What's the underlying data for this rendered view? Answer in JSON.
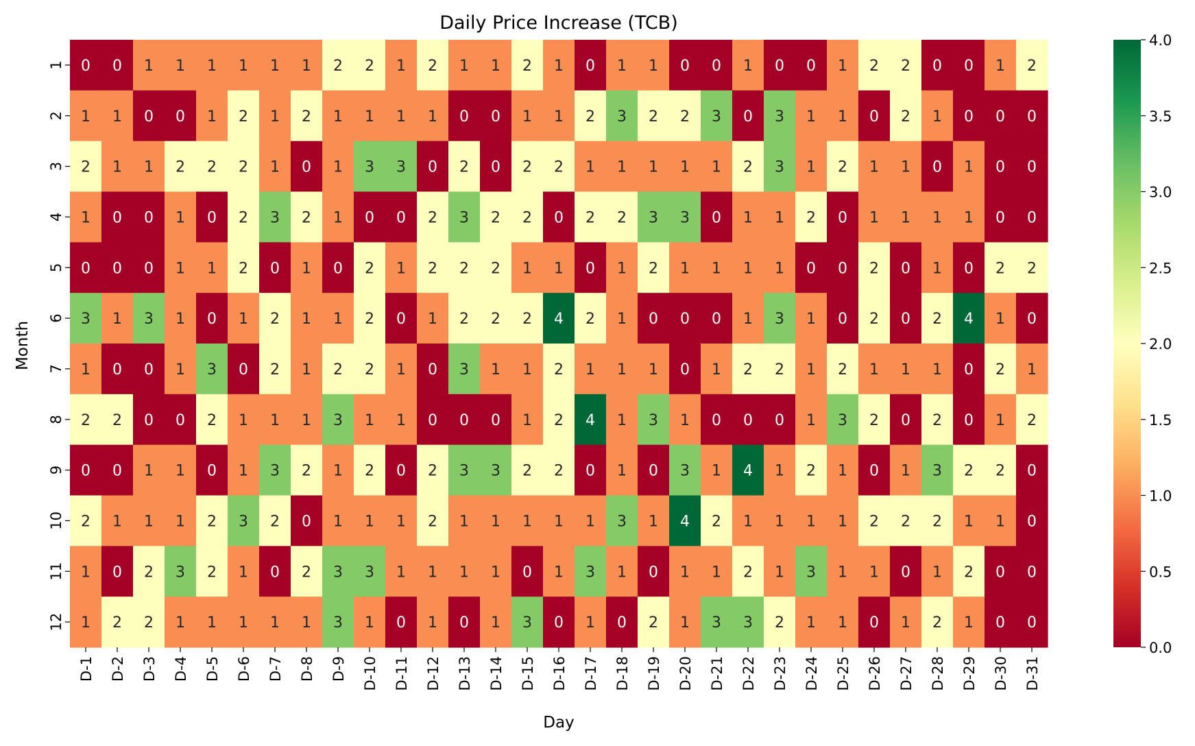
{
  "chart_data": {
    "type": "heatmap",
    "title": "Daily Price Increase (TCB)",
    "xlabel": "Day",
    "ylabel": "Month",
    "x_categories": [
      "D-1",
      "D-2",
      "D-3",
      "D-4",
      "D-5",
      "D-6",
      "D-7",
      "D-8",
      "D-9",
      "D-10",
      "D-11",
      "D-12",
      "D-13",
      "D-14",
      "D-15",
      "D-16",
      "D-17",
      "D-18",
      "D-19",
      "D-20",
      "D-21",
      "D-22",
      "D-23",
      "D-24",
      "D-25",
      "D-26",
      "D-27",
      "D-28",
      "D-29",
      "D-30",
      "D-31"
    ],
    "y_categories": [
      "1",
      "2",
      "3",
      "4",
      "5",
      "6",
      "7",
      "8",
      "9",
      "10",
      "11",
      "12"
    ],
    "values": [
      [
        0,
        0,
        1,
        1,
        1,
        1,
        1,
        1,
        2,
        2,
        1,
        2,
        1,
        1,
        2,
        1,
        0,
        1,
        1,
        0,
        0,
        1,
        0,
        0,
        1,
        2,
        2,
        0,
        0,
        1,
        2
      ],
      [
        1,
        1,
        0,
        0,
        1,
        2,
        1,
        2,
        1,
        1,
        1,
        1,
        0,
        0,
        1,
        1,
        2,
        3,
        2,
        2,
        3,
        0,
        3,
        1,
        1,
        0,
        2,
        1,
        0,
        0,
        0
      ],
      [
        2,
        1,
        1,
        2,
        2,
        2,
        1,
        0,
        1,
        3,
        3,
        0,
        2,
        0,
        2,
        2,
        1,
        1,
        1,
        1,
        1,
        2,
        3,
        1,
        2,
        1,
        1,
        0,
        1,
        0,
        0
      ],
      [
        1,
        0,
        0,
        1,
        0,
        2,
        3,
        2,
        1,
        0,
        0,
        2,
        3,
        2,
        2,
        0,
        2,
        2,
        3,
        3,
        0,
        1,
        1,
        2,
        0,
        1,
        1,
        1,
        1,
        0,
        0
      ],
      [
        0,
        0,
        0,
        1,
        1,
        2,
        0,
        1,
        0,
        2,
        1,
        2,
        2,
        2,
        1,
        1,
        0,
        1,
        2,
        1,
        1,
        1,
        1,
        0,
        0,
        2,
        0,
        1,
        0,
        2,
        2
      ],
      [
        3,
        1,
        3,
        1,
        0,
        1,
        2,
        1,
        1,
        2,
        0,
        1,
        2,
        2,
        2,
        4,
        2,
        1,
        0,
        0,
        0,
        1,
        3,
        1,
        0,
        2,
        0,
        2,
        4,
        1,
        0
      ],
      [
        1,
        0,
        0,
        1,
        3,
        0,
        2,
        1,
        2,
        2,
        1,
        0,
        3,
        1,
        1,
        2,
        1,
        1,
        1,
        0,
        1,
        2,
        2,
        1,
        2,
        1,
        1,
        1,
        0,
        2,
        1
      ],
      [
        2,
        2,
        0,
        0,
        2,
        1,
        1,
        1,
        3,
        1,
        1,
        0,
        0,
        0,
        1,
        2,
        4,
        1,
        3,
        1,
        0,
        0,
        0,
        1,
        3,
        2,
        0,
        2,
        0,
        1,
        2
      ],
      [
        0,
        0,
        1,
        1,
        0,
        1,
        3,
        2,
        1,
        2,
        0,
        2,
        3,
        3,
        2,
        2,
        0,
        1,
        0,
        3,
        1,
        4,
        1,
        2,
        1,
        0,
        1,
        3,
        2,
        2,
        0
      ],
      [
        2,
        1,
        1,
        1,
        2,
        3,
        2,
        0,
        1,
        1,
        1,
        2,
        1,
        1,
        1,
        1,
        1,
        3,
        1,
        4,
        2,
        1,
        1,
        1,
        1,
        2,
        2,
        2,
        1,
        1,
        0
      ],
      [
        1,
        0,
        2,
        3,
        2,
        1,
        0,
        2,
        3,
        3,
        1,
        1,
        1,
        1,
        0,
        1,
        3,
        1,
        0,
        1,
        1,
        2,
        1,
        3,
        1,
        1,
        0,
        1,
        2,
        0,
        0
      ],
      [
        1,
        2,
        2,
        1,
        1,
        1,
        1,
        1,
        3,
        1,
        0,
        1,
        0,
        1,
        3,
        0,
        1,
        0,
        2,
        1,
        3,
        3,
        2,
        1,
        1,
        0,
        1,
        2,
        1,
        0,
        0
      ]
    ],
    "vmin": 0,
    "vmax": 4,
    "colormap": "RdYlGn",
    "colorbar_ticks": [
      "0.0",
      "0.5",
      "1.0",
      "1.5",
      "2.0",
      "2.5",
      "3.0",
      "3.5",
      "4.0"
    ],
    "colors": {
      "0": "#a50026",
      "1": "#f98e52",
      "2": "#fefebd",
      "3": "#84ca66",
      "4": "#006837"
    }
  }
}
